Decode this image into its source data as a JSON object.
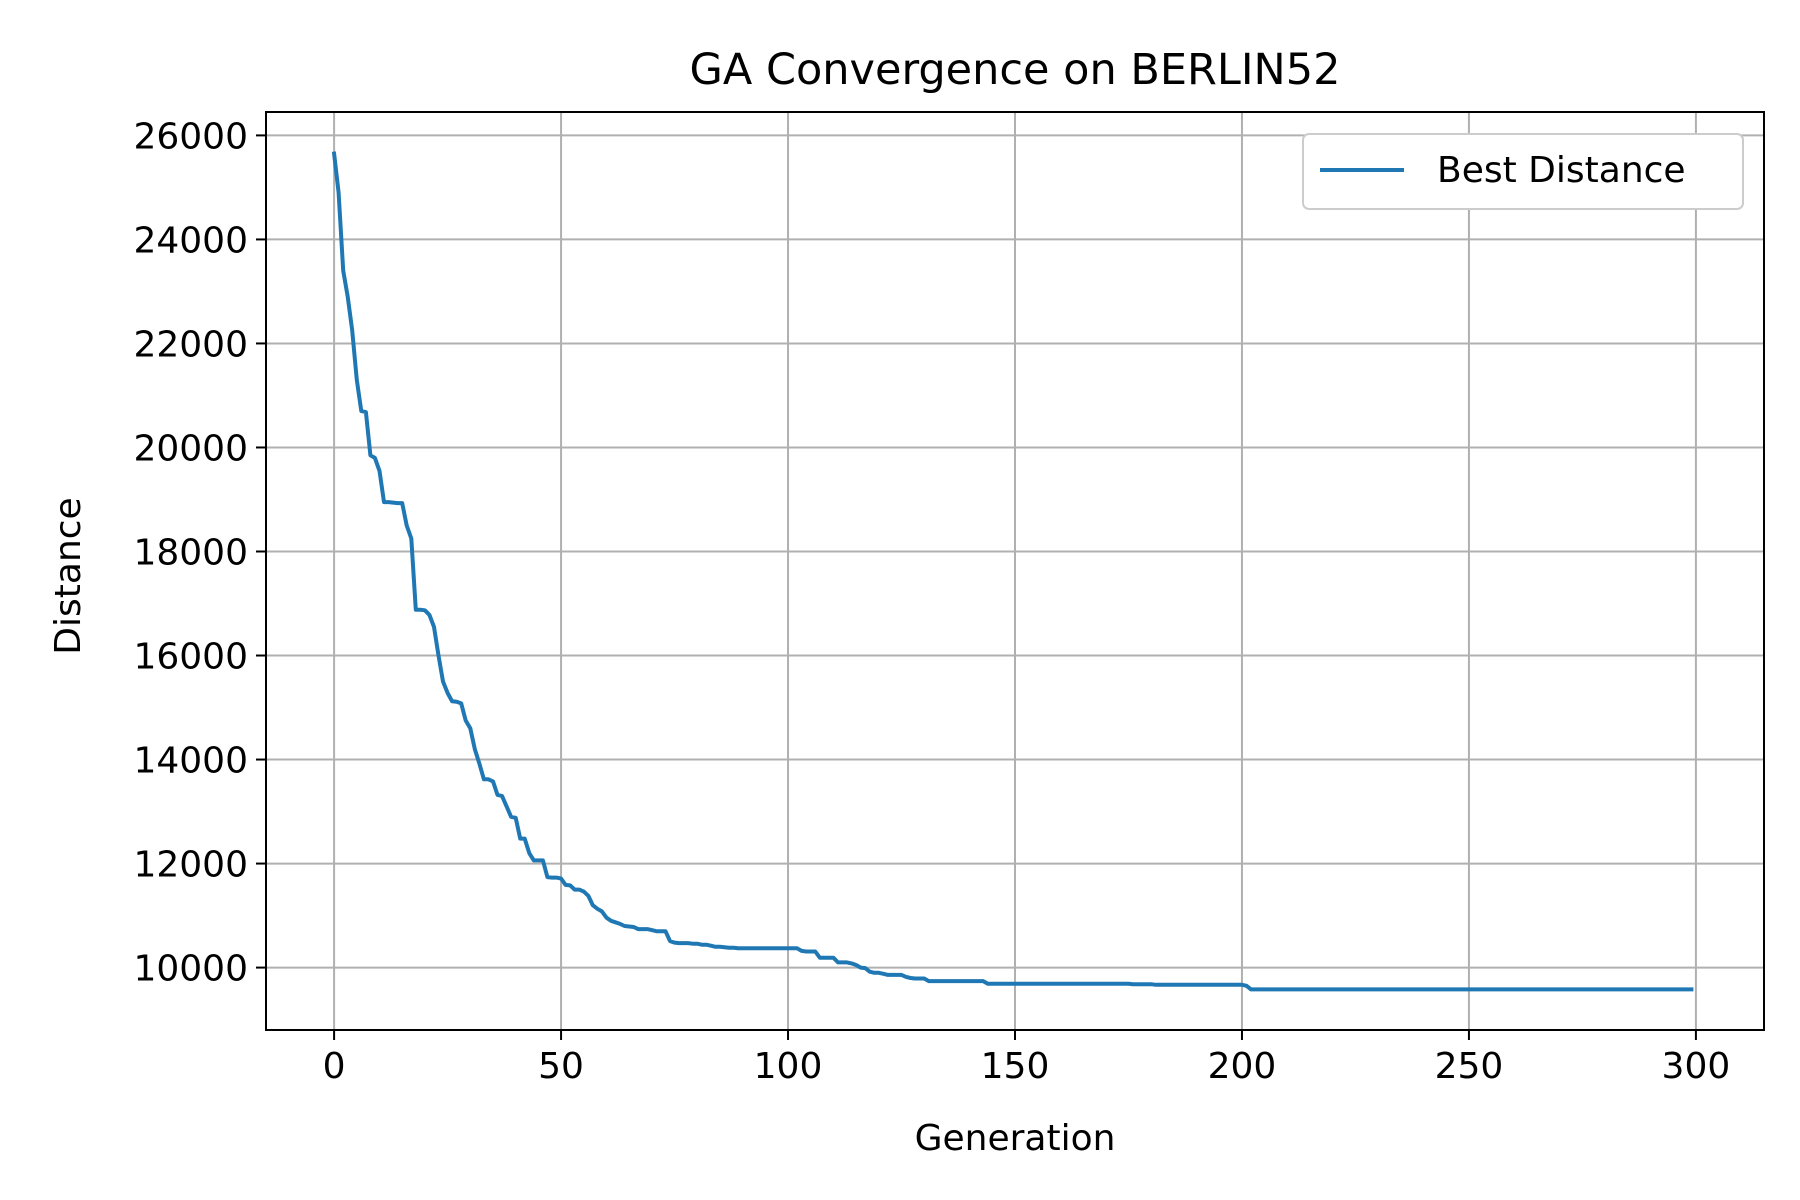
{
  "chart_data": {
    "type": "line",
    "title": "GA Convergence on BERLIN52",
    "xlabel": "Generation",
    "ylabel": "Distance",
    "xlim": [
      -15,
      315
    ],
    "ylim": [
      8800,
      26450
    ],
    "xticks": [
      0,
      50,
      100,
      150,
      200,
      250,
      300
    ],
    "yticks": [
      10000,
      12000,
      14000,
      16000,
      18000,
      20000,
      22000,
      24000,
      26000
    ],
    "grid": true,
    "legend_position": "upper right",
    "colors": {
      "series": "#1f77b4",
      "grid": "#b0b0b0",
      "axis": "#000000",
      "legend_border": "#cccccc"
    },
    "series": [
      {
        "name": "Best Distance",
        "color": "#1f77b4",
        "points": [
          [
            0,
            25650
          ],
          [
            1,
            24900
          ],
          [
            2,
            23400
          ],
          [
            3,
            22900
          ],
          [
            4,
            22250
          ],
          [
            5,
            21300
          ],
          [
            6,
            20700
          ],
          [
            7,
            20680
          ],
          [
            8,
            19850
          ],
          [
            9,
            19800
          ],
          [
            10,
            19550
          ],
          [
            11,
            18950
          ],
          [
            12,
            18950
          ],
          [
            13,
            18940
          ],
          [
            14,
            18930
          ],
          [
            15,
            18930
          ],
          [
            16,
            18500
          ],
          [
            17,
            18250
          ],
          [
            18,
            16880
          ],
          [
            19,
            16880
          ],
          [
            20,
            16870
          ],
          [
            21,
            16780
          ],
          [
            22,
            16550
          ],
          [
            23,
            16000
          ],
          [
            24,
            15500
          ],
          [
            25,
            15280
          ],
          [
            26,
            15120
          ],
          [
            27,
            15110
          ],
          [
            28,
            15080
          ],
          [
            29,
            14750
          ],
          [
            30,
            14600
          ],
          [
            31,
            14200
          ],
          [
            32,
            13920
          ],
          [
            33,
            13620
          ],
          [
            34,
            13620
          ],
          [
            35,
            13580
          ],
          [
            36,
            13320
          ],
          [
            37,
            13300
          ],
          [
            38,
            13100
          ],
          [
            39,
            12900
          ],
          [
            40,
            12880
          ],
          [
            41,
            12480
          ],
          [
            42,
            12480
          ],
          [
            43,
            12200
          ],
          [
            44,
            12060
          ],
          [
            45,
            12060
          ],
          [
            46,
            12060
          ],
          [
            47,
            11740
          ],
          [
            48,
            11730
          ],
          [
            49,
            11730
          ],
          [
            50,
            11710
          ],
          [
            51,
            11590
          ],
          [
            52,
            11580
          ],
          [
            53,
            11500
          ],
          [
            54,
            11500
          ],
          [
            55,
            11460
          ],
          [
            56,
            11380
          ],
          [
            57,
            11200
          ],
          [
            58,
            11130
          ],
          [
            59,
            11080
          ],
          [
            60,
            10960
          ],
          [
            61,
            10900
          ],
          [
            62,
            10870
          ],
          [
            63,
            10840
          ],
          [
            64,
            10800
          ],
          [
            65,
            10790
          ],
          [
            66,
            10780
          ],
          [
            67,
            10740
          ],
          [
            68,
            10740
          ],
          [
            69,
            10740
          ],
          [
            70,
            10720
          ],
          [
            71,
            10700
          ],
          [
            72,
            10700
          ],
          [
            73,
            10700
          ],
          [
            74,
            10510
          ],
          [
            75,
            10480
          ],
          [
            76,
            10470
          ],
          [
            77,
            10470
          ],
          [
            78,
            10470
          ],
          [
            79,
            10460
          ],
          [
            80,
            10460
          ],
          [
            81,
            10440
          ],
          [
            82,
            10440
          ],
          [
            83,
            10420
          ],
          [
            84,
            10400
          ],
          [
            85,
            10400
          ],
          [
            86,
            10390
          ],
          [
            87,
            10380
          ],
          [
            88,
            10380
          ],
          [
            89,
            10370
          ],
          [
            90,
            10370
          ],
          [
            95,
            10370
          ],
          [
            100,
            10370
          ],
          [
            102,
            10370
          ],
          [
            103,
            10320
          ],
          [
            104,
            10310
          ],
          [
            105,
            10310
          ],
          [
            106,
            10310
          ],
          [
            107,
            10190
          ],
          [
            108,
            10190
          ],
          [
            109,
            10190
          ],
          [
            110,
            10190
          ],
          [
            111,
            10100
          ],
          [
            112,
            10100
          ],
          [
            113,
            10100
          ],
          [
            114,
            10080
          ],
          [
            115,
            10050
          ],
          [
            116,
            10000
          ],
          [
            117,
            9990
          ],
          [
            118,
            9920
          ],
          [
            119,
            9900
          ],
          [
            120,
            9900
          ],
          [
            121,
            9880
          ],
          [
            122,
            9860
          ],
          [
            124,
            9860
          ],
          [
            125,
            9860
          ],
          [
            126,
            9820
          ],
          [
            127,
            9800
          ],
          [
            128,
            9790
          ],
          [
            130,
            9790
          ],
          [
            131,
            9740
          ],
          [
            133,
            9740
          ],
          [
            135,
            9740
          ],
          [
            143,
            9740
          ],
          [
            144,
            9690
          ],
          [
            150,
            9690
          ],
          [
            160,
            9690
          ],
          [
            170,
            9690
          ],
          [
            175,
            9690
          ],
          [
            176,
            9680
          ],
          [
            180,
            9680
          ],
          [
            181,
            9670
          ],
          [
            190,
            9670
          ],
          [
            200,
            9670
          ],
          [
            201,
            9650
          ],
          [
            202,
            9580
          ],
          [
            220,
            9580
          ],
          [
            250,
            9580
          ],
          [
            280,
            9580
          ],
          [
            299,
            9580
          ]
        ]
      }
    ]
  }
}
